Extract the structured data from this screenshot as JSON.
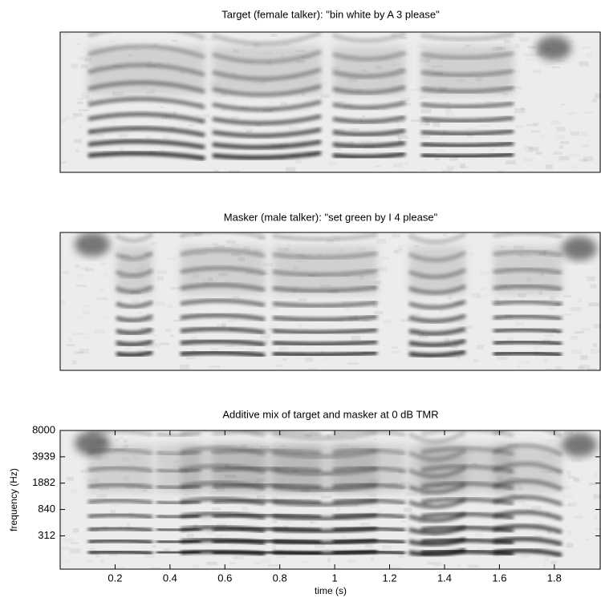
{
  "chart_data": [
    {
      "type": "spectrogram",
      "title": "Target (female talker): \"bin white by A 3 please\""
    },
    {
      "type": "spectrogram",
      "title": "Masker (male talker): \"set green by I 4 please\""
    },
    {
      "type": "spectrogram",
      "title": "Additive mix of target and masker at 0 dB TMR",
      "xlabel": "time (s)",
      "ylabel": "frequency (Hz)",
      "xlim": [
        0,
        1.97
      ],
      "xticks": [
        0.2,
        0.4,
        0.6,
        0.8,
        1,
        1.2,
        1.4,
        1.6,
        1.8
      ],
      "ylim": [
        0,
        8000
      ],
      "yscale": "erb",
      "yticks": [
        312,
        840,
        1882,
        3939,
        8000
      ]
    }
  ]
}
